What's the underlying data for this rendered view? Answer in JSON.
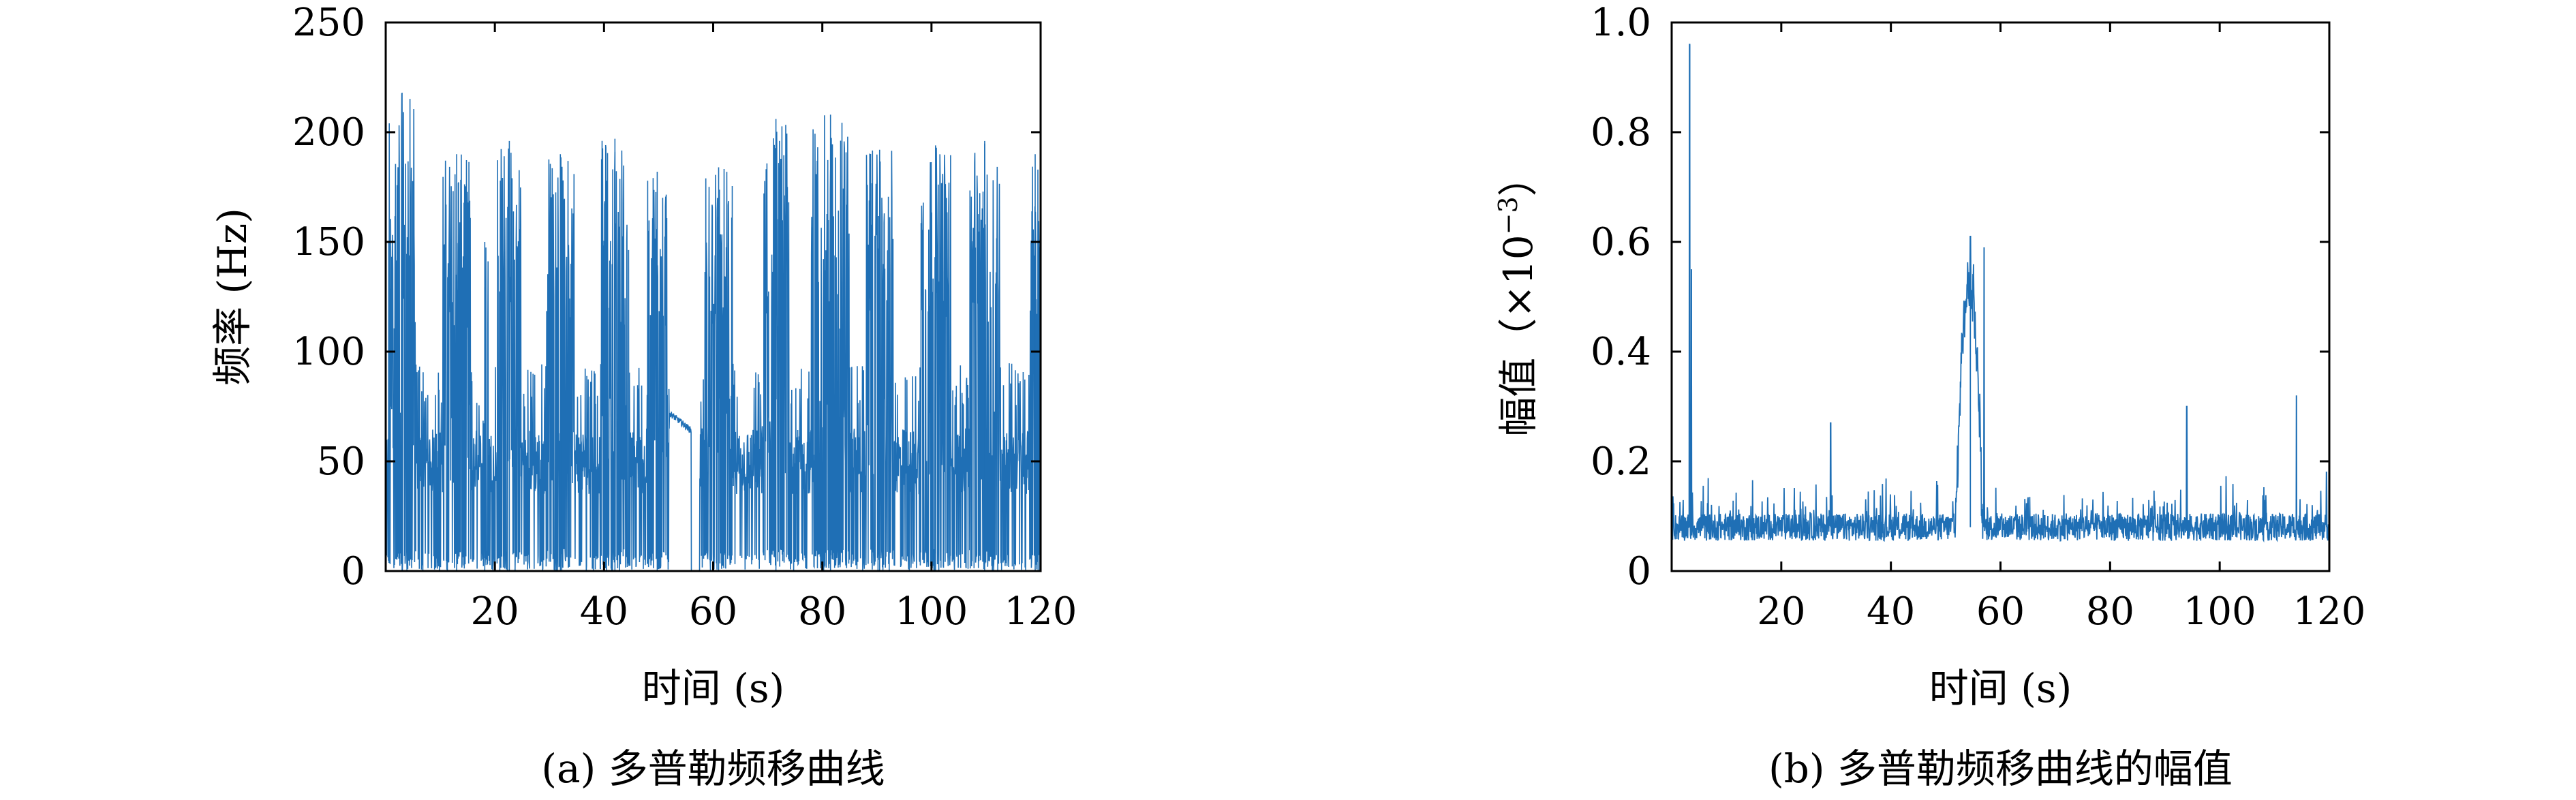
{
  "chart_data": [
    {
      "type": "line",
      "caption": "(a) 多普勒频移曲线",
      "xlabel": "时间 (s)",
      "ylabel": "频率 (Hz)",
      "xlim": [
        0,
        120
      ],
      "ylim": [
        0,
        250
      ],
      "xticks": [
        20,
        40,
        60,
        80,
        100,
        120
      ],
      "xtick_labels": [
        "20",
        "40",
        "60",
        "80",
        "100",
        "120"
      ],
      "yticks": [
        0,
        50,
        100,
        150,
        200,
        250
      ],
      "ytick_labels": [
        "0",
        "50",
        "100",
        "150",
        "200",
        "250"
      ],
      "grid": false,
      "line_color": "#1f6fb5",
      "bursts": [
        {
          "start": 0.5,
          "end": 5.5,
          "peak": 218
        },
        {
          "start": 10.5,
          "end": 15.5,
          "peak": 190
        },
        {
          "start": 17.5,
          "end": 18.8,
          "peak": 150
        },
        {
          "start": 20.5,
          "end": 24.8,
          "peak": 196
        },
        {
          "start": 29.5,
          "end": 34.5,
          "peak": 190
        },
        {
          "start": 39.5,
          "end": 44.5,
          "peak": 197
        },
        {
          "start": 48.0,
          "end": 51.5,
          "peak": 182
        },
        {
          "start": 58.5,
          "end": 63.5,
          "peak": 184
        },
        {
          "start": 69.0,
          "end": 74.0,
          "peak": 206
        },
        {
          "start": 78.0,
          "end": 85.0,
          "peak": 208
        },
        {
          "start": 88.0,
          "end": 93.0,
          "peak": 192
        },
        {
          "start": 98.0,
          "end": 103.5,
          "peak": 194
        },
        {
          "start": 107.0,
          "end": 112.5,
          "peak": 196
        },
        {
          "start": 118.0,
          "end": 120.0,
          "peak": 190
        }
      ],
      "baseline_level": 50,
      "smooth_segment": {
        "x": [
          52.0,
          54.0,
          56.0
        ],
        "y": [
          72,
          69,
          64
        ]
      },
      "gap": {
        "start": 56.0,
        "end": 57.5
      }
    },
    {
      "type": "line",
      "caption": "(b) 多普勒频移曲线的幅值",
      "xlabel": "时间 (s)",
      "ylabel_prefix": "幅值（×10",
      "ylabel_sup": "−3",
      "ylabel_suffix": "）",
      "xlim": [
        0,
        120
      ],
      "ylim": [
        0,
        1.0
      ],
      "xticks": [
        20,
        40,
        60,
        80,
        100,
        120
      ],
      "xtick_labels": [
        "20",
        "40",
        "60",
        "80",
        "100",
        "120"
      ],
      "yticks": [
        0,
        0.2,
        0.4,
        0.6,
        0.8,
        1.0
      ],
      "ytick_labels": [
        "0",
        "0.2",
        "0.4",
        "0.6",
        "0.8",
        "1.0"
      ],
      "grid": false,
      "line_color": "#1f6fb5",
      "baseline_level": 0.08,
      "peaks": [
        {
          "x": 3.3,
          "y": 0.96
        },
        {
          "x": 3.6,
          "y": 0.55
        },
        {
          "x": 29.0,
          "y": 0.27
        },
        {
          "x": 54.5,
          "y": 0.61
        },
        {
          "x": 57.0,
          "y": 0.59
        },
        {
          "x": 94.0,
          "y": 0.3
        },
        {
          "x": 114.0,
          "y": 0.32
        },
        {
          "x": 119.5,
          "y": 0.18
        }
      ],
      "bump": {
        "start": 51.5,
        "end": 56.5,
        "center": 54.3,
        "height": 0.45
      }
    }
  ]
}
